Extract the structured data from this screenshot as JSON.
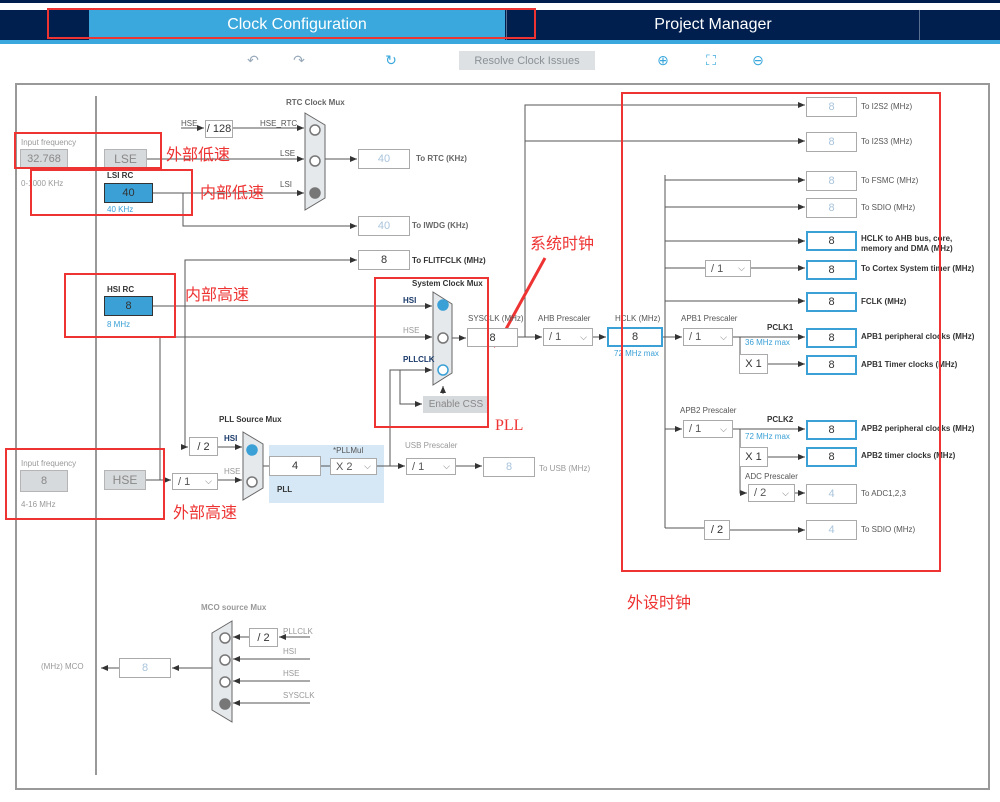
{
  "tabs": [
    {
      "label": "Clock Configuration",
      "active": true
    },
    {
      "label": "Project Manager",
      "active": false
    }
  ],
  "toolbar": {
    "undo_icon": "undo-icon",
    "redo_icon": "redo-icon",
    "refresh_icon": "refresh-icon",
    "resolve_label": "Resolve Clock Issues",
    "zoom_in_icon": "zoom-in-icon",
    "fit_icon": "fit-icon",
    "zoom_out_icon": "zoom-out-icon"
  },
  "colors": {
    "navy": "#001f4f",
    "accent": "#3aa8dc",
    "annotation": "#ee3333",
    "pll_bg": "#d6e8f5"
  },
  "lse": {
    "input_label": "Input frequency",
    "input_value": "32.768",
    "range": "0-1000 KHz",
    "label": "LSE"
  },
  "lsi": {
    "title": "LSI RC",
    "value": "40",
    "freq": "40 KHz"
  },
  "hsi": {
    "title": "HSI RC",
    "value": "8",
    "freq": "8 MHz"
  },
  "hse": {
    "input_label": "Input frequency",
    "input_value": "8",
    "range": "4-16 MHz",
    "label": "HSE",
    "div": "/ 1"
  },
  "rtc": {
    "title": "RTC Clock Mux",
    "hse_label": "HSE",
    "div128": "/ 128",
    "hse_rtc": "HSE_RTC",
    "lse": "LSE",
    "lsi": "LSI",
    "to_rtc_value": "40",
    "to_rtc_label": "To RTC (KHz)",
    "iwdg_value": "40",
    "iwdg_label": "To IWDG (KHz)",
    "flit_value": "8",
    "flit_label": "To FLITFCLK (MHz)"
  },
  "sysmux": {
    "title": "System Clock Mux",
    "hsi": "HSI",
    "hse": "HSE",
    "pllclk": "PLLCLK",
    "enable_css": "Enable CSS",
    "sysclk_label": "SYSCLK (MHz)",
    "sysclk_value": "8"
  },
  "ahb": {
    "label": "AHB Prescaler",
    "value": "/ 1",
    "hclk_label": "HCLK (MHz)",
    "hclk_value": "8",
    "hclk_max": "72 MHz max"
  },
  "apb1": {
    "label": "APB1 Prescaler",
    "value": "/ 1",
    "pclk": "PCLK1",
    "max": "36 MHz max",
    "periph_value": "8",
    "periph_label": "APB1 peripheral clocks (MHz)",
    "mult": "X 1",
    "timer_value": "8",
    "timer_label": "APB1 Timer clocks (MHz)"
  },
  "apb2": {
    "label": "APB2 Prescaler",
    "value": "/ 1",
    "pclk": "PCLK2",
    "max": "72 MHz max",
    "periph_value": "8",
    "periph_label": "APB2 peripheral clocks (MHz)",
    "mult": "X 1",
    "timer_value": "8",
    "timer_label": "APB2 timer clocks (MHz)",
    "adc_label": "ADC Prescaler",
    "adc_div": "/ 2",
    "adc_value": "4",
    "adc_out": "To ADC1,2,3"
  },
  "outputs": {
    "i2s2_value": "8",
    "i2s2_label": "To I2S2 (MHz)",
    "i2s3_value": "8",
    "i2s3_label": "To I2S3 (MHz)",
    "fsmc_value": "8",
    "fsmc_label": "To FSMC (MHz)",
    "sdio_value": "8",
    "sdio_label": "To SDIO (MHz)",
    "hclk_ahb_value": "8",
    "hclk_ahb_label1": "HCLK to AHB bus, core,",
    "hclk_ahb_label2": "memory and DMA (MHz)",
    "cortex_div": "/ 1",
    "cortex_value": "8",
    "cortex_label": "To Cortex System timer (MHz)",
    "fclk_value": "8",
    "fclk_label": "FCLK (MHz)",
    "sdio2_div": "/ 2",
    "sdio2_value": "4",
    "sdio2_label": "To SDIO (MHz)"
  },
  "pll": {
    "title": "PLL Source Mux",
    "div2": "/ 2",
    "hsi": "HSI",
    "hse": "HSE",
    "value": "4",
    "mul_label": "*PLLMul",
    "mul": "X 2",
    "label": "PLL"
  },
  "usb": {
    "label": "USB Prescaler",
    "div": "/ 1",
    "value": "8",
    "out": "To USB (MHz)"
  },
  "mco": {
    "title": "MCO source Mux",
    "div2": "/ 2",
    "pllclk": "PLLCLK",
    "hsi": "HSI",
    "hse": "HSE",
    "sysclk": "SYSCLK",
    "value": "8",
    "label": "(MHz) MCO"
  },
  "annotations": {
    "lse": "外部低速",
    "lsi": "内部低速",
    "hsi": "内部高速",
    "hse": "外部高速",
    "sysclk": "系统时钟",
    "pll": "PLL",
    "periph": "外设时钟"
  }
}
